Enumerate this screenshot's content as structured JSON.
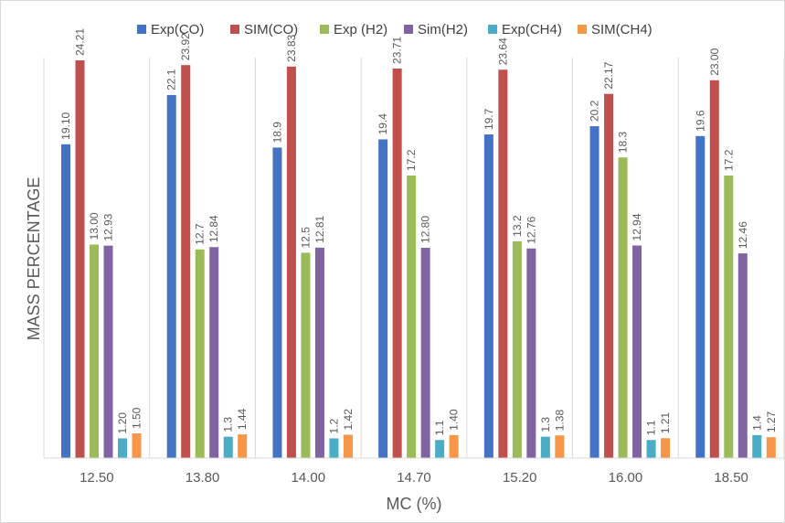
{
  "chart_data": {
    "type": "bar",
    "title": "",
    "xlabel": "MC (%)",
    "ylabel": "MASS PERCENTAGE",
    "ylim": [
      0,
      25.5
    ],
    "grid": "vertical category separators only",
    "legend_position": "top",
    "categories": [
      "12.50",
      "13.80",
      "14.00",
      "14.70",
      "15.20",
      "16.00",
      "18.50"
    ],
    "series": [
      {
        "name": "Exp(CO)",
        "color": "#4472c4",
        "values": [
          19.1,
          22.1,
          18.9,
          19.4,
          19.7,
          20.2,
          19.6
        ],
        "labels": [
          "19.10",
          "22.1",
          "18.9",
          "19.4",
          "19.7",
          "20.2",
          "19.6"
        ]
      },
      {
        "name": "SIM(CO)",
        "color": "#c0504d",
        "values": [
          24.21,
          23.92,
          23.83,
          23.71,
          23.64,
          22.17,
          23.0
        ],
        "labels": [
          "24.21",
          "23.92",
          "23.83",
          "23.71",
          "23.64",
          "22.17",
          "23.00"
        ]
      },
      {
        "name": "Exp (H2)",
        "color": "#9bbb59",
        "values": [
          13.0,
          12.7,
          12.5,
          17.2,
          13.2,
          18.3,
          17.2
        ],
        "labels": [
          "13.00",
          "12.7",
          "12.5",
          "17.2",
          "13.2",
          "18.3",
          "17.2"
        ]
      },
      {
        "name": "Sim(H2)",
        "color": "#8064a2",
        "values": [
          12.93,
          12.84,
          12.81,
          12.8,
          12.76,
          12.94,
          12.46
        ],
        "labels": [
          "12.93",
          "12.84",
          "12.81",
          "12.80",
          "12.76",
          "12.94",
          "12.46"
        ]
      },
      {
        "name": "Exp(CH4)",
        "color": "#4bacc6",
        "values": [
          1.2,
          1.3,
          1.2,
          1.1,
          1.3,
          1.1,
          1.4
        ],
        "labels": [
          "1.20",
          "1.3",
          "1.2",
          "1.1",
          "1.3",
          "1.1",
          "1.4"
        ]
      },
      {
        "name": "SIM(CH4)",
        "color": "#f79646",
        "values": [
          1.5,
          1.44,
          1.42,
          1.4,
          1.38,
          1.21,
          1.27
        ],
        "labels": [
          "1.50",
          "1.44",
          "1.42",
          "1.40",
          "1.38",
          "1.21",
          "1.27"
        ]
      }
    ]
  }
}
